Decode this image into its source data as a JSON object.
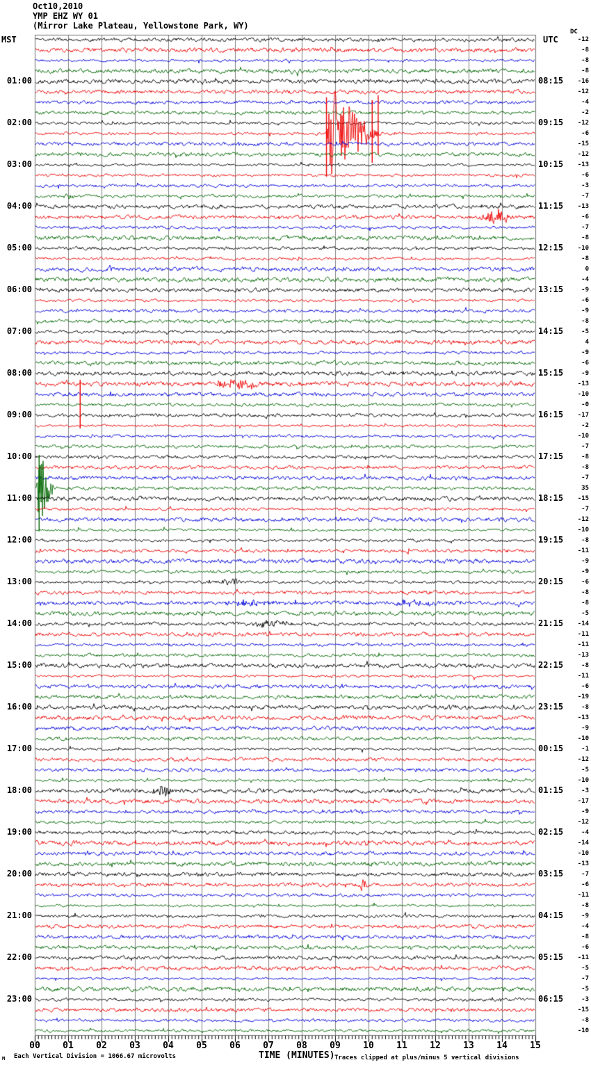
{
  "header": {
    "date": "Oct10,2010",
    "station": "YMP EHZ WY 01",
    "location": "(Mirror Lake Plateau, Yellowstone Park, WY)"
  },
  "plot": {
    "left_tz": "MST",
    "right_tz": "UTC",
    "dc_header": "DC"
  },
  "x_axis": {
    "title": "TIME (MINUTES)",
    "tick_labels": [
      "00",
      "01",
      "02",
      "03",
      "04",
      "05",
      "06",
      "07",
      "08",
      "09",
      "10",
      "11",
      "12",
      "13",
      "14",
      "15"
    ]
  },
  "footer": {
    "scale_note": "Each Vertical Division = 1066.67 microvolts",
    "clip_note": "Traces clipped at plus/minus 5 vertical divisions",
    "corner_mark": "M"
  },
  "chart_data": {
    "type": "line",
    "subtype": "helicorder-seismogram",
    "title": "YMP EHZ WY 01 (Mirror Lake Plateau, Yellowstone Park, WY) Oct10,2010",
    "xlabel": "TIME (MINUTES)",
    "x_range_minutes": [
      0,
      15
    ],
    "minutes_per_line": 15,
    "num_lines": 96,
    "grid": true,
    "background": "#ffffff",
    "grid_color": "#808080",
    "trace_color_cycle": [
      "#000000",
      "#ee0000",
      "#0000dd",
      "#006600"
    ],
    "x_tick_labels": [
      "00",
      "01",
      "02",
      "03",
      "04",
      "05",
      "06",
      "07",
      "08",
      "09",
      "10",
      "11",
      "12",
      "13",
      "14",
      "15"
    ],
    "first_labeled_line": 4,
    "label_every_n_lines": 4,
    "left_time_labels": [
      "01:00",
      "02:00",
      "03:00",
      "04:00",
      "05:00",
      "06:00",
      "07:00",
      "08:00",
      "09:00",
      "10:00",
      "11:00",
      "12:00",
      "13:00",
      "14:00",
      "15:00",
      "16:00",
      "17:00",
      "18:00",
      "19:00",
      "20:00",
      "21:00",
      "22:00",
      "23:00"
    ],
    "right_time_labels": [
      "08:15",
      "09:15",
      "10:15",
      "11:15",
      "12:15",
      "13:15",
      "14:15",
      "15:15",
      "16:15",
      "17:15",
      "18:15",
      "19:15",
      "20:15",
      "21:15",
      "22:15",
      "23:15",
      "00:15",
      "01:15",
      "02:15",
      "03:15",
      "04:15",
      "05:15",
      "06:15"
    ],
    "dc_offsets": [
      "-12",
      "-8",
      "-8",
      "-8",
      "-16",
      "-12",
      "-4",
      "-2",
      "-12",
      "-6",
      "-15",
      "-12",
      "-13",
      "-6",
      "-3",
      "-7",
      "-13",
      "-6",
      "-7",
      "-8",
      "-10",
      "-8",
      "0",
      "-4",
      "-9",
      "-6",
      "-9",
      "-8",
      "-5",
      "4",
      "-9",
      "-6",
      "-9",
      "-13",
      "-10",
      "-0",
      "-17",
      "-2",
      "-10",
      "-7",
      "-8",
      "-8",
      "-7",
      "35",
      "-15",
      "-7",
      "-12",
      "-10",
      "-8",
      "-11",
      "-9",
      "-9",
      "-6",
      "-8",
      "-8",
      "-5",
      "-14",
      "-11",
      "-11",
      "-13",
      "-8",
      "-11",
      "-6",
      "-19",
      "-8",
      "-13",
      "-9",
      "-10",
      "-1",
      "-12",
      "-5",
      "-10",
      "-3",
      "-17",
      "-9",
      "-12",
      "-4",
      "-14",
      "-10",
      "-13",
      "-7",
      "-6",
      "-11",
      "-8",
      "-9",
      "-4",
      "-8",
      "-6",
      "-11",
      "-5",
      "-7",
      "-5",
      "-3",
      "-15",
      "-8",
      "-10"
    ],
    "events": [
      {
        "line": 9,
        "kind": "quake",
        "m0": 8.72,
        "m1": 10.45,
        "amp": 70,
        "clip": 60,
        "description": "large local earthquake, trace clipped"
      },
      {
        "line": 15,
        "kind": "burst",
        "m0": 0.78,
        "m1": 1.3,
        "amp": 4,
        "description": "small event"
      },
      {
        "line": 17,
        "kind": "burst",
        "m0": 13.25,
        "m1": 14.35,
        "amp": 9,
        "description": "small event"
      },
      {
        "line": 33,
        "kind": "burst",
        "m0": 5.2,
        "m1": 7.0,
        "amp": 6,
        "description": "small event"
      },
      {
        "line": 43,
        "kind": "quake",
        "m0": 0.05,
        "m1": 0.62,
        "amp": 65,
        "clip": 55,
        "description": "local event at start of line, clipped"
      },
      {
        "line": 52,
        "kind": "burst",
        "m0": 5.5,
        "m1": 6.3,
        "amp": 5,
        "description": "noise burst"
      },
      {
        "line": 54,
        "kind": "burst",
        "m0": 5.5,
        "m1": 7.2,
        "amp": 4,
        "description": "noise burst"
      },
      {
        "line": 54,
        "kind": "burst",
        "m0": 10.5,
        "m1": 12.2,
        "amp": 3.5,
        "description": "noise burst"
      },
      {
        "line": 56,
        "kind": "burst",
        "m0": 6.4,
        "m1": 7.9,
        "amp": 4.5,
        "description": "noise burst"
      },
      {
        "line": 72,
        "kind": "burst",
        "m0": 3.45,
        "m1": 4.2,
        "amp": 8,
        "description": "small burst"
      },
      {
        "line": 81,
        "kind": "burst",
        "m0": 9.68,
        "m1": 9.95,
        "amp": 9,
        "description": "spike"
      }
    ],
    "telemetry_spikes": [
      {
        "line": 9,
        "m": 8.73,
        "up": 52,
        "down": 62
      },
      {
        "line": 9,
        "m": 10.1,
        "up": 48,
        "down": 42
      },
      {
        "line": 9,
        "m": 10.28,
        "up": 55,
        "down": 30
      },
      {
        "line": 37,
        "m": 1.35,
        "up": 66,
        "down": 4
      },
      {
        "line": 43,
        "m": 0.12,
        "up": 48,
        "down": 62
      }
    ]
  }
}
